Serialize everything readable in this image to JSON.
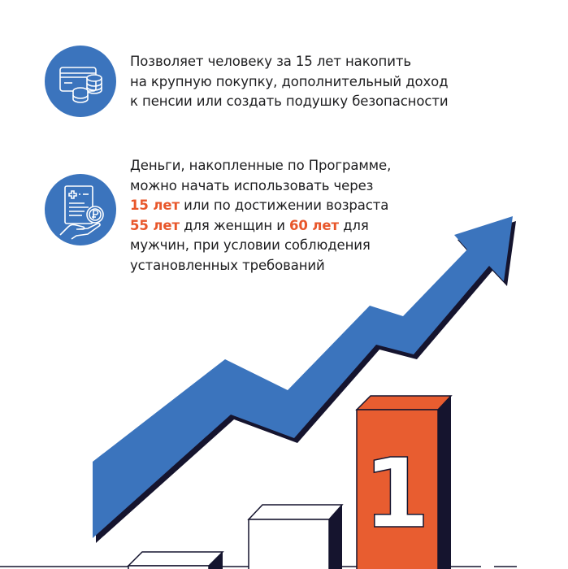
{
  "colors": {
    "accent_blue": "#3b74bd",
    "accent_orange": "#e85d30",
    "navy": "#15142e",
    "text": "#1d1d1f"
  },
  "items": [
    {
      "icon": "card-coins-icon",
      "lines": [
        [
          {
            "t": "Позволяет человеку за 15 лет накопить"
          }
        ],
        [
          {
            "t": "на крупную покупку, дополнительный доход"
          }
        ],
        [
          {
            "t": "к пенсии или создать подушку безопасности"
          }
        ]
      ]
    },
    {
      "icon": "document-ruble-hand-icon",
      "lines": [
        [
          {
            "t": "Деньги, накопленные по Программе,"
          }
        ],
        [
          {
            "t": "можно начать использовать через"
          }
        ],
        [
          {
            "t": "15 лет",
            "hl": true
          },
          {
            "t": " или по достижении возраста"
          }
        ],
        [
          {
            "t": "55 лет",
            "hl": true
          },
          {
            "t": " для женщин и "
          },
          {
            "t": "60 лет",
            "hl": true
          },
          {
            "t": " для"
          }
        ],
        [
          {
            "t": "мужчин, при условии соблюдения"
          }
        ],
        [
          {
            "t": "установленных требований"
          }
        ]
      ]
    }
  ],
  "podium": {
    "winner_label": "1"
  }
}
